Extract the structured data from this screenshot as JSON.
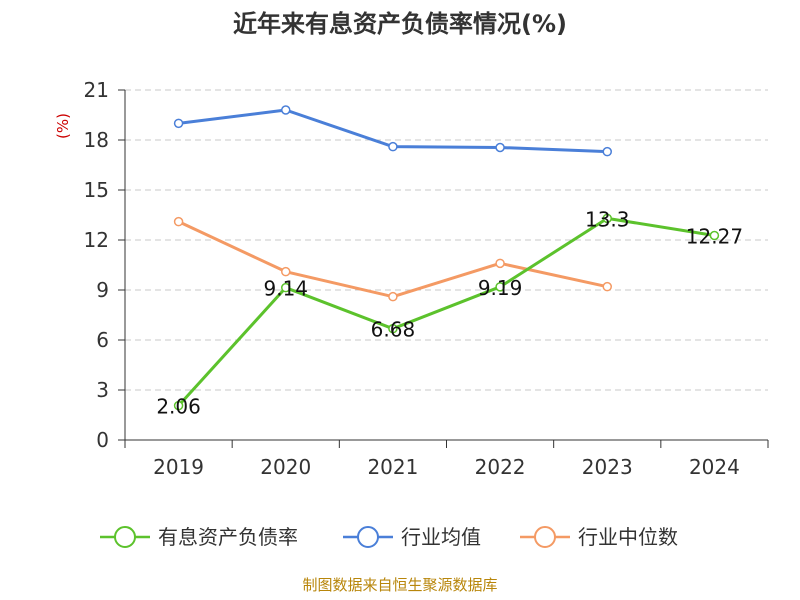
{
  "chart_data": {
    "type": "line",
    "title": "近年来有息资产负债率情况(%)",
    "ylabel": "(%)",
    "xlabel": "",
    "ylim": [
      0,
      21
    ],
    "yticks": [
      0,
      3,
      6,
      9,
      12,
      15,
      18,
      21
    ],
    "categories": [
      "2019",
      "2020",
      "2021",
      "2022",
      "2023",
      "2024"
    ],
    "grid": true,
    "legend_position": "bottom",
    "series": [
      {
        "name": "有息资产负债率",
        "color": "#5cc22c",
        "values": [
          2.06,
          9.14,
          6.68,
          9.19,
          13.3,
          12.27
        ],
        "labels": [
          "2.06",
          "9.14",
          "6.68",
          "9.19",
          "13.3",
          "12.27"
        ]
      },
      {
        "name": "行业均值",
        "color": "#4a7fd8",
        "values": [
          19.0,
          19.8,
          17.6,
          17.55,
          17.3,
          null
        ]
      },
      {
        "name": "行业中位数",
        "color": "#f49a64",
        "values": [
          13.1,
          10.1,
          8.6,
          10.6,
          9.2,
          null
        ]
      }
    ],
    "source": "制图数据来自恒生聚源数据库"
  }
}
